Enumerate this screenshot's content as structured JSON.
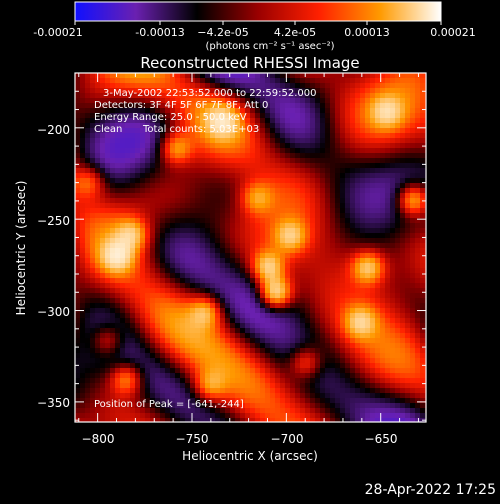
{
  "chart_data": {
    "type": "heatmap",
    "title": "Reconstructed RHESSI Image",
    "xlabel": "Heliocentric X (arcsec)",
    "ylabel": "Heliocentric Y (arcsec)",
    "xlim": [
      -812,
      -626
    ],
    "ylim": [
      -361,
      -170
    ],
    "xticks": [
      -800,
      -750,
      -700,
      -650
    ],
    "yticks": [
      -200,
      -250,
      -300,
      -350
    ],
    "xtick_labels": [
      "−800",
      "−750",
      "−700",
      "−650"
    ],
    "ytick_labels": [
      "−200",
      "−250",
      "−300",
      "−350"
    ],
    "colorbar": {
      "range": [
        -0.00021,
        0.00021
      ],
      "tick_labels": [
        "-0.00021",
        "-0.00013",
        "−4.2e-05",
        "4.2e-05",
        "0.00013",
        "0.00021"
      ],
      "unit_label": "(photons cm⁻² s⁻¹ asec⁻²)",
      "colors": [
        "#1010ff",
        "#6a20b0",
        "#000000",
        "#9a0000",
        "#ff2000",
        "#ff9a00",
        "#ffffff"
      ]
    },
    "annotations": {
      "time_range": "3-May-2002 22:53:52.000 to 22:59:52.000",
      "detectors": "Detectors: 3F 4F 5F 6F 7F 8F, Att 0",
      "energy_range": "Energy Range: 25.0 - 50.0 keV",
      "algorithm": "Clean",
      "total_counts": "Total counts: 5.03E+03",
      "peak_position": "Position of Peak = [-641,-244]"
    },
    "peak": {
      "x": -641,
      "y": -244
    },
    "bright_sources": [
      {
        "x": -707,
        "y": -289,
        "intensity": 1.0
      },
      {
        "x": -711,
        "y": -275,
        "intensity": 0.75
      },
      {
        "x": -699,
        "y": -258,
        "intensity": 0.55
      },
      {
        "x": -791,
        "y": -269,
        "intensity": 0.65
      },
      {
        "x": -783,
        "y": -257,
        "intensity": 0.55
      },
      {
        "x": -786,
        "y": -336,
        "intensity": 0.6
      },
      {
        "x": -796,
        "y": -315,
        "intensity": 0.45
      },
      {
        "x": -760,
        "y": -210,
        "intensity": 0.6
      },
      {
        "x": -735,
        "y": -195,
        "intensity": 0.5
      },
      {
        "x": -658,
        "y": -275,
        "intensity": 0.7
      },
      {
        "x": -662,
        "y": -305,
        "intensity": 0.55
      },
      {
        "x": -634,
        "y": -238,
        "intensity": 0.8
      },
      {
        "x": -648,
        "y": -190,
        "intensity": 0.5
      },
      {
        "x": -744,
        "y": -299,
        "intensity": 0.55
      },
      {
        "x": -742,
        "y": -340,
        "intensity": 0.45
      },
      {
        "x": -691,
        "y": -327,
        "intensity": 0.5
      },
      {
        "x": -717,
        "y": -237,
        "intensity": 0.45
      },
      {
        "x": -806,
        "y": -228,
        "intensity": 0.45
      }
    ]
  },
  "footer_timestamp": "28-Apr-2022 17:25"
}
